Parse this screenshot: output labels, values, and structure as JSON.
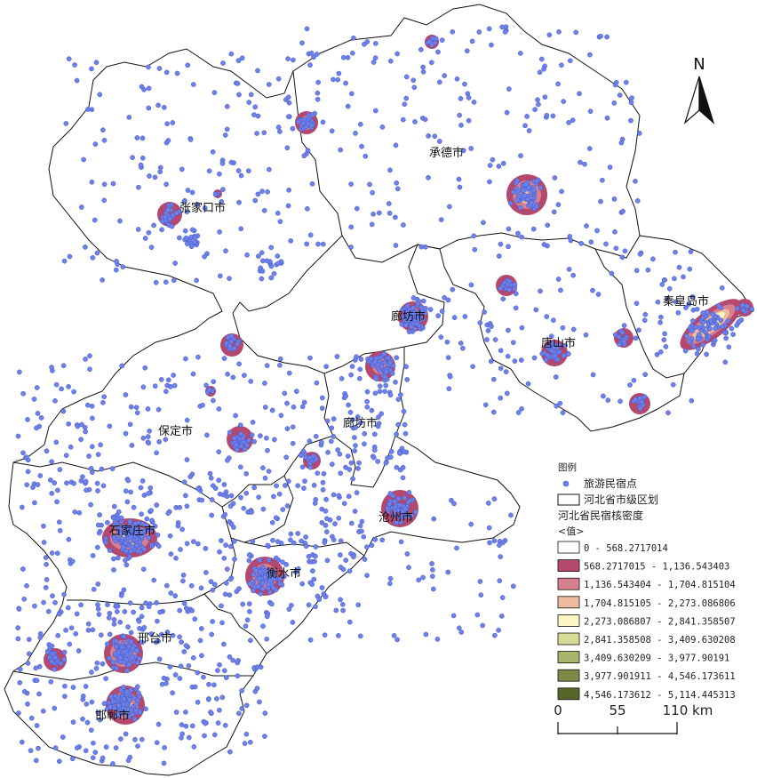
{
  "north_label": "N",
  "cities": [
    {
      "id": "zhangjiakou",
      "name": "张家口市"
    },
    {
      "id": "chengde",
      "name": "承德市"
    },
    {
      "id": "qinhuangdao",
      "name": "秦皇岛市"
    },
    {
      "id": "tangshan",
      "name": "唐山市"
    },
    {
      "id": "langfang_n",
      "name": "廊坊市"
    },
    {
      "id": "langfang_s",
      "name": "廊坊市"
    },
    {
      "id": "baoding",
      "name": "保定市"
    },
    {
      "id": "cangzhou",
      "name": "沧州市"
    },
    {
      "id": "shijiazhuang",
      "name": "石家庄市"
    },
    {
      "id": "hengshui",
      "name": "衡水市"
    },
    {
      "id": "xingtai",
      "name": "邢台市"
    },
    {
      "id": "handan",
      "name": "邯郸市"
    }
  ],
  "legend": {
    "title": "图例",
    "points_label": "旅游民宿点",
    "boundary_label": "河北省市级区划",
    "density_title": "河北省民宿核密度",
    "value_label": "<值>",
    "classes": [
      {
        "range": "0 - 568.2717014",
        "color": "#ffffff"
      },
      {
        "range": "568.2717015 - 1,136.543403",
        "color": "#b4486e"
      },
      {
        "range": "1,136.543404 - 1,704.815104",
        "color": "#d8808e"
      },
      {
        "range": "1,704.815105 - 2,273.086806",
        "color": "#eebba0"
      },
      {
        "range": "2,273.086807 - 2,841.358507",
        "color": "#fbf5c4"
      },
      {
        "range": "2,841.358508 - 3,409.630208",
        "color": "#d6dc98"
      },
      {
        "range": "3,409.630209 - 3,977.90191",
        "color": "#a9b46c"
      },
      {
        "range": "3,977.901911 - 4,546.173611",
        "color": "#7c8a46"
      },
      {
        "range": "4,546.173612 - 5,114.445313",
        "color": "#566528"
      }
    ]
  },
  "scale_bar": {
    "labels": [
      "0",
      "55",
      "110 km"
    ]
  },
  "colors": {
    "points": "#6f80e8",
    "point_stroke": "#4457c7",
    "boundary": "#111111"
  }
}
